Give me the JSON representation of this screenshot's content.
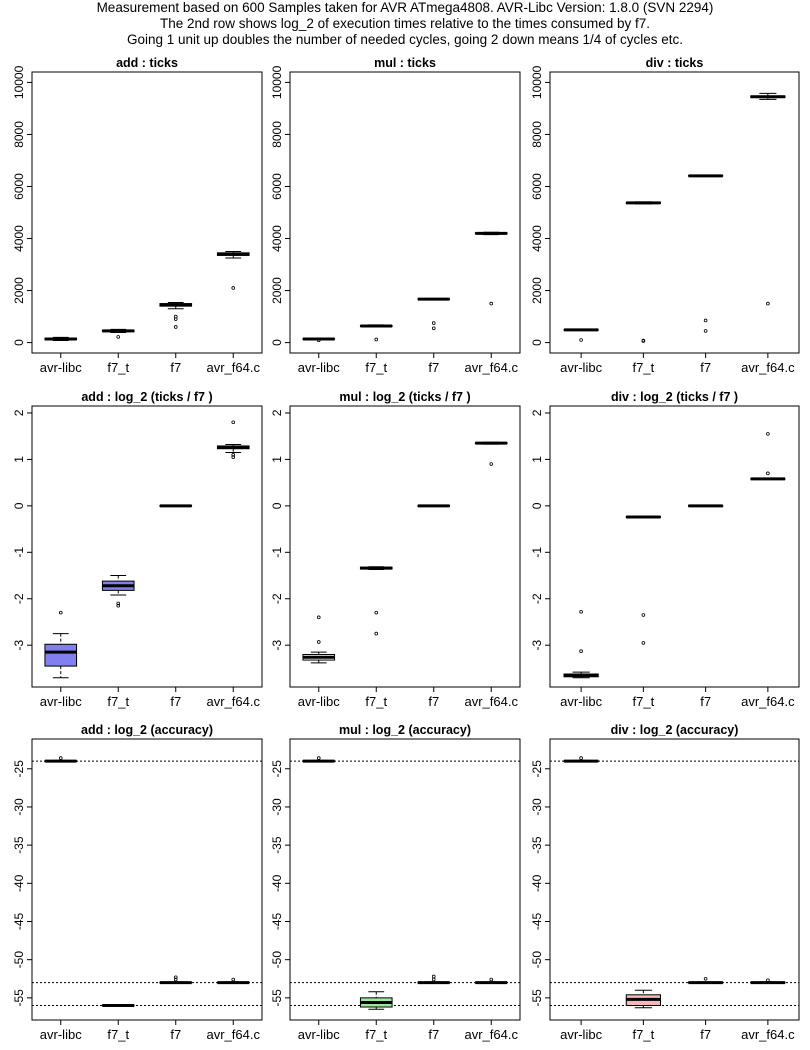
{
  "header": {
    "line1": "Measurement based on 600 Samples taken for AVR ATmega4808.  AVR-Libc Version: 1.8.0 (SVN 2294)",
    "line2": "The 2nd row shows log_2 of execution times relative to the times  consumed by f7.",
    "line3": "Going 1 unit up doubles the number of needed cycles, going 2 down means 1/4 of cycles etc."
  },
  "chart_data": [
    {
      "type": "box",
      "title": "add :  ticks",
      "categories": [
        "avr-libc",
        "f7_t",
        "f7",
        "avr_f64.c"
      ],
      "ylim": [
        -400,
        10400
      ],
      "yticks": [
        0,
        2000,
        4000,
        6000,
        8000,
        10000
      ],
      "ytick_labels": [
        "0",
        "2000",
        "4000",
        "6000",
        "8000",
        "10000"
      ],
      "hlines": [],
      "boxes": [
        {
          "lw": 80,
          "q1": 110,
          "med": 140,
          "q3": 170,
          "hw": 200,
          "out": [],
          "fill": "#ffffff"
        },
        {
          "lw": 390,
          "q1": 420,
          "med": 450,
          "q3": 480,
          "hw": 510,
          "out": [
            220
          ],
          "fill": "#ffffff"
        },
        {
          "lw": 1300,
          "q1": 1400,
          "med": 1450,
          "q3": 1500,
          "hw": 1540,
          "out": [
            600,
            900,
            1000
          ],
          "fill": "#ffffff"
        },
        {
          "lw": 3250,
          "q1": 3350,
          "med": 3400,
          "q3": 3450,
          "hw": 3500,
          "out": [
            2100
          ],
          "fill": "#ffffff"
        }
      ]
    },
    {
      "type": "box",
      "title": "mul :  ticks",
      "categories": [
        "avr-libc",
        "f7_t",
        "f7",
        "avr_f64.c"
      ],
      "ylim": [
        -400,
        10400
      ],
      "yticks": [
        0,
        2000,
        4000,
        6000,
        8000,
        10000
      ],
      "ytick_labels": [
        "0",
        "2000",
        "4000",
        "6000",
        "8000",
        "10000"
      ],
      "hlines": [],
      "boxes": [
        {
          "lw": 120,
          "q1": 130,
          "med": 140,
          "q3": 150,
          "hw": 160,
          "out": [
            90
          ],
          "fill": "#ffffff"
        },
        {
          "lw": 600,
          "q1": 620,
          "med": 640,
          "q3": 660,
          "hw": 680,
          "out": [
            120
          ],
          "fill": "#ffffff"
        },
        {
          "lw": 1650,
          "q1": 1660,
          "med": 1670,
          "q3": 1680,
          "hw": 1690,
          "out": [
            550,
            750
          ],
          "fill": "#ffffff"
        },
        {
          "lw": 4150,
          "q1": 4180,
          "med": 4200,
          "q3": 4220,
          "hw": 4240,
          "out": [
            1500
          ],
          "fill": "#ffffff"
        }
      ]
    },
    {
      "type": "box",
      "title": "div :  ticks",
      "categories": [
        "avr-libc",
        "f7_t",
        "f7",
        "avr_f64.c"
      ],
      "ylim": [
        -400,
        10400
      ],
      "yticks": [
        0,
        2000,
        4000,
        6000,
        8000,
        10000
      ],
      "ytick_labels": [
        "0",
        "2000",
        "4000",
        "6000",
        "8000",
        "10000"
      ],
      "hlines": [],
      "boxes": [
        {
          "lw": 470,
          "q1": 480,
          "med": 490,
          "q3": 500,
          "hw": 510,
          "out": [
            100
          ],
          "fill": "#ffffff"
        },
        {
          "lw": 5330,
          "q1": 5350,
          "med": 5370,
          "q3": 5390,
          "hw": 5410,
          "out": [
            60,
            80
          ],
          "fill": "#ffffff"
        },
        {
          "lw": 6390,
          "q1": 6400,
          "med": 6410,
          "q3": 6420,
          "hw": 6430,
          "out": [
            450,
            850
          ],
          "fill": "#ffffff"
        },
        {
          "lw": 9350,
          "q1": 9420,
          "med": 9450,
          "q3": 9480,
          "hw": 9580,
          "out": [
            1500
          ],
          "fill": "#ffffff"
        }
      ]
    },
    {
      "type": "box",
      "title": "add :  log_2 (ticks /  f7 )",
      "categories": [
        "avr-libc",
        "f7_t",
        "f7",
        "avr_f64.c"
      ],
      "ylim": [
        -3.9,
        2.15
      ],
      "yticks": [
        -3,
        -2,
        -1,
        0,
        1,
        2
      ],
      "ytick_labels": [
        "-3",
        "-2",
        "-1",
        "0",
        "1",
        "2"
      ],
      "hlines": [],
      "boxes": [
        {
          "lw": -3.7,
          "q1": -3.45,
          "med": -3.15,
          "q3": -2.98,
          "hw": -2.75,
          "out": [
            -2.3
          ],
          "fill": "#8080ee"
        },
        {
          "lw": -1.92,
          "q1": -1.82,
          "med": -1.72,
          "q3": -1.62,
          "hw": -1.5,
          "out": [
            -2.1,
            -2.15
          ],
          "fill": "#8080ee"
        },
        {
          "lw": 0,
          "q1": -0.01,
          "med": 0,
          "q3": 0.01,
          "hw": 0,
          "out": [],
          "fill": "#ffffff"
        },
        {
          "lw": 1.15,
          "q1": 1.23,
          "med": 1.26,
          "q3": 1.29,
          "hw": 1.32,
          "out": [
            1.05,
            1.1,
            1.8
          ],
          "fill": "#ffffff"
        }
      ]
    },
    {
      "type": "box",
      "title": "mul :  log_2 (ticks /  f7 )",
      "categories": [
        "avr-libc",
        "f7_t",
        "f7",
        "avr_f64.c"
      ],
      "ylim": [
        -3.9,
        2.15
      ],
      "yticks": [
        -3,
        -2,
        -1,
        0,
        1,
        2
      ],
      "ytick_labels": [
        "-3",
        "-2",
        "-1",
        "0",
        "1",
        "2"
      ],
      "hlines": [],
      "boxes": [
        {
          "lw": -3.38,
          "q1": -3.32,
          "med": -3.26,
          "q3": -3.2,
          "hw": -3.15,
          "out": [
            -2.4,
            -2.93
          ],
          "fill": "#ffffff"
        },
        {
          "lw": -1.37,
          "q1": -1.36,
          "med": -1.34,
          "q3": -1.32,
          "hw": -1.31,
          "out": [
            -2.3,
            -2.75
          ],
          "fill": "#ffffff"
        },
        {
          "lw": 0,
          "q1": -0.01,
          "med": 0,
          "q3": 0.01,
          "hw": 0,
          "out": [],
          "fill": "#ffffff"
        },
        {
          "lw": 1.33,
          "q1": 1.34,
          "med": 1.35,
          "q3": 1.36,
          "hw": 1.37,
          "out": [
            0.9
          ],
          "fill": "#ffffff"
        }
      ]
    },
    {
      "type": "box",
      "title": "div :  log_2 (ticks /  f7 )",
      "categories": [
        "avr-libc",
        "f7_t",
        "f7",
        "avr_f64.c"
      ],
      "ylim": [
        -3.9,
        2.15
      ],
      "yticks": [
        -3,
        -2,
        -1,
        0,
        1,
        2
      ],
      "ytick_labels": [
        "-3",
        "-2",
        "-1",
        "0",
        "1",
        "2"
      ],
      "hlines": [],
      "boxes": [
        {
          "lw": -3.7,
          "q1": -3.68,
          "med": -3.65,
          "q3": -3.62,
          "hw": -3.58,
          "out": [
            -2.28,
            -3.13
          ],
          "fill": "#ffffff"
        },
        {
          "lw": -0.25,
          "q1": -0.25,
          "med": -0.24,
          "q3": -0.23,
          "hw": -0.23,
          "out": [
            -2.35,
            -2.95
          ],
          "fill": "#ffffff"
        },
        {
          "lw": 0,
          "q1": -0.01,
          "med": 0,
          "q3": 0.01,
          "hw": 0,
          "out": [],
          "fill": "#ffffff"
        },
        {
          "lw": 0.57,
          "q1": 0.575,
          "med": 0.58,
          "q3": 0.585,
          "hw": 0.59,
          "out": [
            0.7,
            1.55
          ],
          "fill": "#ffffff"
        }
      ]
    },
    {
      "type": "box",
      "title": "add : log_2 (accuracy)",
      "categories": [
        "avr-libc",
        "f7_t",
        "f7",
        "avr_f64.c"
      ],
      "ylim": [
        -57.9,
        -21.1
      ],
      "yticks": [
        -55,
        -50,
        -45,
        -40,
        -35,
        -30,
        -25
      ],
      "ytick_labels": [
        "-55",
        "-50",
        "-45",
        "-40",
        "-35",
        "-30",
        "-25"
      ],
      "hlines": [
        -24,
        -53,
        -56
      ],
      "boxes": [
        {
          "lw": -24.1,
          "q1": -24.05,
          "med": -24.0,
          "q3": -23.95,
          "hw": -23.9,
          "out": [
            -23.6
          ],
          "fill": "#ffffff"
        },
        {
          "lw": -56,
          "q1": -56.05,
          "med": -56,
          "q3": -55.95,
          "hw": -56,
          "out": [],
          "fill": "#ffffff"
        },
        {
          "lw": -53.1,
          "q1": -53.05,
          "med": -53,
          "q3": -52.95,
          "hw": -52.9,
          "out": [
            -52.3,
            -52.6
          ],
          "fill": "#ffffff"
        },
        {
          "lw": -53.1,
          "q1": -53.05,
          "med": -53,
          "q3": -52.95,
          "hw": -52.9,
          "out": [
            -52.6
          ],
          "fill": "#ffffff"
        }
      ]
    },
    {
      "type": "box",
      "title": "mul : log_2 (accuracy)",
      "categories": [
        "avr-libc",
        "f7_t",
        "f7",
        "avr_f64.c"
      ],
      "ylim": [
        -57.9,
        -21.1
      ],
      "yticks": [
        -55,
        -50,
        -45,
        -40,
        -35,
        -30,
        -25
      ],
      "ytick_labels": [
        "-55",
        "-50",
        "-45",
        "-40",
        "-35",
        "-30",
        "-25"
      ],
      "hlines": [
        -24,
        -53,
        -56
      ],
      "boxes": [
        {
          "lw": -24.1,
          "q1": -24.05,
          "med": -24.0,
          "q3": -23.95,
          "hw": -23.9,
          "out": [
            -23.6
          ],
          "fill": "#ffffff"
        },
        {
          "lw": -56.5,
          "q1": -56.2,
          "med": -55.6,
          "q3": -55.0,
          "hw": -54.2,
          "out": [],
          "fill": "#9ee89e"
        },
        {
          "lw": -53.1,
          "q1": -53.05,
          "med": -53,
          "q3": -52.95,
          "hw": -52.9,
          "out": [
            -52.2,
            -52.6
          ],
          "fill": "#ffffff"
        },
        {
          "lw": -53.1,
          "q1": -53.05,
          "med": -53,
          "q3": -52.95,
          "hw": -52.9,
          "out": [
            -52.6
          ],
          "fill": "#ffffff"
        }
      ]
    },
    {
      "type": "box",
      "title": "div : log_2 (accuracy)",
      "categories": [
        "avr-libc",
        "f7_t",
        "f7",
        "avr_f64.c"
      ],
      "ylim": [
        -57.9,
        -21.1
      ],
      "yticks": [
        -55,
        -50,
        -45,
        -40,
        -35,
        -30,
        -25
      ],
      "ytick_labels": [
        "-55",
        "-50",
        "-45",
        "-40",
        "-35",
        "-30",
        "-25"
      ],
      "hlines": [
        -24,
        -53,
        -56
      ],
      "boxes": [
        {
          "lw": -24.1,
          "q1": -24.05,
          "med": -24.0,
          "q3": -23.95,
          "hw": -23.9,
          "out": [
            -23.6
          ],
          "fill": "#ffffff"
        },
        {
          "lw": -56.3,
          "q1": -56.0,
          "med": -55.2,
          "q3": -54.6,
          "hw": -54.0,
          "out": [],
          "fill": "#f6b8b8"
        },
        {
          "lw": -53.1,
          "q1": -53.05,
          "med": -53,
          "q3": -52.95,
          "hw": -52.9,
          "out": [
            -52.5
          ],
          "fill": "#ffffff"
        },
        {
          "lw": -53.1,
          "q1": -53.05,
          "med": -53,
          "q3": -52.95,
          "hw": -52.9,
          "out": [
            -52.7
          ],
          "fill": "#ffffff"
        }
      ]
    }
  ]
}
